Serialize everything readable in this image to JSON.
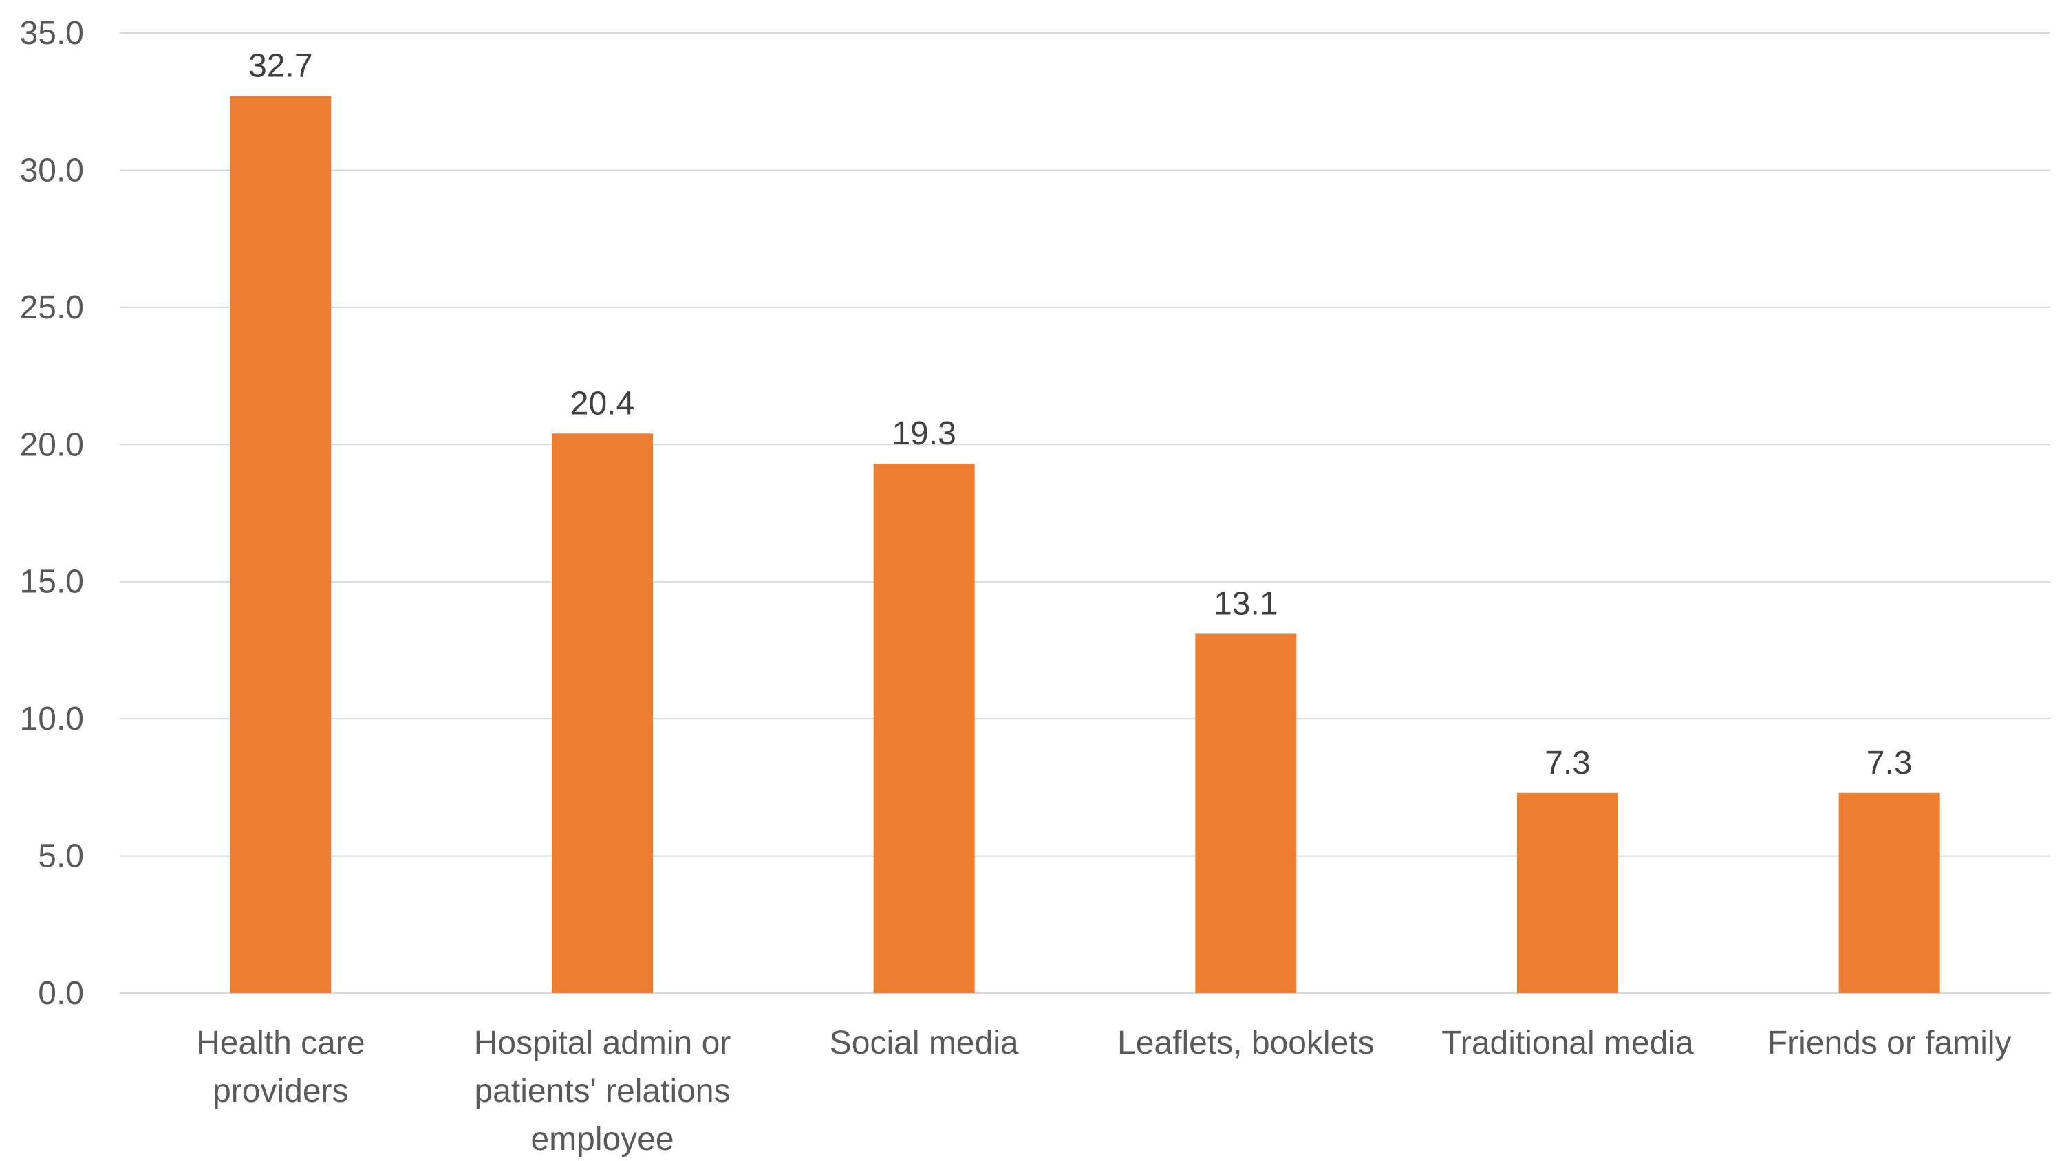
{
  "chart_data": {
    "type": "bar",
    "title": "",
    "xlabel": "",
    "ylabel": "",
    "categories": [
      [
        "Health care",
        "providers"
      ],
      [
        "Hospital admin or",
        "patients' relations",
        "employee"
      ],
      [
        "Social media"
      ],
      [
        "Leaflets, booklets"
      ],
      [
        "Traditional media"
      ],
      [
        "Friends or family"
      ]
    ],
    "values": [
      32.7,
      20.4,
      19.3,
      13.1,
      7.3,
      7.3
    ],
    "data_labels": [
      "32.7",
      "20.4",
      "19.3",
      "13.1",
      "7.3",
      "7.3"
    ],
    "ylim": [
      0,
      35
    ],
    "yticks": [
      "0.0",
      "5.0",
      "10.0",
      "15.0",
      "20.0",
      "25.0",
      "30.0",
      "35.0"
    ],
    "grid": true,
    "legend": "none",
    "bar_color": "#ED7D31"
  }
}
